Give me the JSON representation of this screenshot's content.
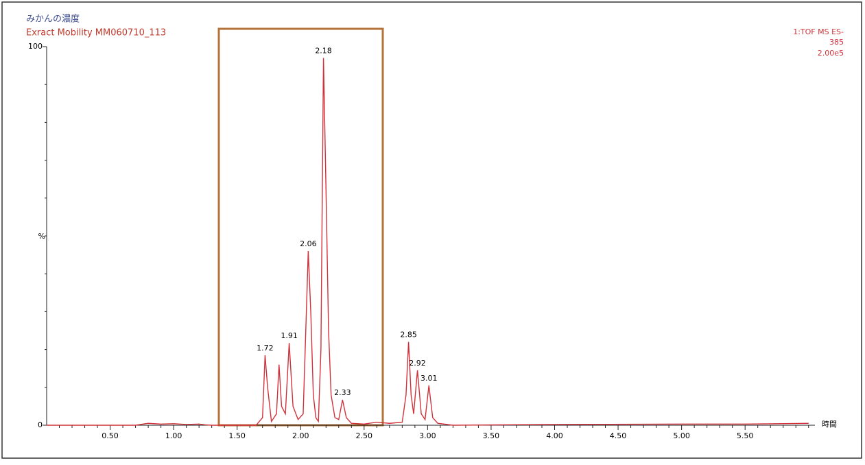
{
  "chart_data": {
    "type": "line",
    "title": "みかんの濃度",
    "subtitle": "Exract Mobility MM060710_113",
    "annotations": [
      "1:TOF MS ES-",
      "385",
      "2.00e5"
    ],
    "xlabel": "時間",
    "ylabel": "%",
    "xlim": [
      0,
      6.05
    ],
    "ylim": [
      0,
      100
    ],
    "xticks": [
      {
        "value": 0.5,
        "label": "0.50"
      },
      {
        "value": 1,
        "label": "1.00"
      },
      {
        "value": 1.5,
        "label": "1.50"
      },
      {
        "value": 2,
        "label": "2.00"
      },
      {
        "value": 2.5,
        "label": "2.50"
      },
      {
        "value": 3,
        "label": "3.00"
      },
      {
        "value": 3.5,
        "label": "3.50"
      },
      {
        "value": 4,
        "label": "4.00"
      },
      {
        "value": 4.5,
        "label": "4.50"
      },
      {
        "value": 5,
        "label": "5.00"
      },
      {
        "value": 5.5,
        "label": "5.50"
      }
    ],
    "xminorticks": [
      0.1,
      0.2,
      0.3,
      0.4,
      0.6,
      0.7,
      0.8,
      0.9,
      1.1,
      1.2,
      1.3,
      1.4,
      1.6,
      1.7,
      1.8,
      1.9,
      2.1,
      2.2,
      2.3,
      2.4,
      2.6,
      2.7,
      2.8,
      2.9,
      3.1,
      3.2,
      3.3,
      3.4,
      3.6,
      3.7,
      3.8,
      3.9,
      4.1,
      4.2,
      4.3,
      4.4,
      4.6,
      4.7,
      4.8,
      4.9,
      5.1,
      5.2,
      5.3,
      5.4,
      5.6,
      5.7,
      5.8,
      5.9,
      6.0
    ],
    "yticks": [
      0,
      100
    ],
    "yminorticks": [
      10,
      20,
      30,
      40,
      50,
      60,
      70,
      80,
      90
    ],
    "series": [
      {
        "color": "#d0313a",
        "x": [
          0,
          0.7,
          0.8,
          0.9,
          1.0,
          1.1,
          1.2,
          1.25,
          1.3,
          1.65,
          1.7,
          1.72,
          1.74,
          1.77,
          1.81,
          1.83,
          1.85,
          1.88,
          1.91,
          1.94,
          1.98,
          2.02,
          2.05,
          2.06,
          2.08,
          2.1,
          2.12,
          2.14,
          2.16,
          2.18,
          2.2,
          2.22,
          2.24,
          2.27,
          2.3,
          2.33,
          2.36,
          2.4,
          2.5,
          2.6,
          2.7,
          2.8,
          2.83,
          2.85,
          2.87,
          2.89,
          2.92,
          2.95,
          2.98,
          3.01,
          3.04,
          3.08,
          3.2,
          4.0,
          5.0,
          5.5,
          6.0
        ],
        "values": [
          0,
          0,
          0.5,
          0.3,
          0.4,
          0.2,
          0.3,
          0.1,
          0,
          0,
          2,
          18.5,
          10,
          1,
          3,
          16,
          5,
          3,
          21.7,
          5,
          1.5,
          3,
          35,
          46,
          30,
          8,
          2,
          1,
          20,
          97,
          62,
          25,
          8,
          2,
          1.5,
          6.7,
          2,
          0.5,
          0.3,
          0.8,
          0.5,
          0.8,
          8,
          22,
          8,
          3,
          14.5,
          3,
          1.5,
          10.5,
          2,
          0.5,
          0,
          0.2,
          0.3,
          0.3,
          0.5
        ]
      }
    ],
    "peaks": [
      1.72,
      1.91,
      2.06,
      2.18,
      2.33,
      2.85,
      2.92,
      3.01
    ]
  }
}
